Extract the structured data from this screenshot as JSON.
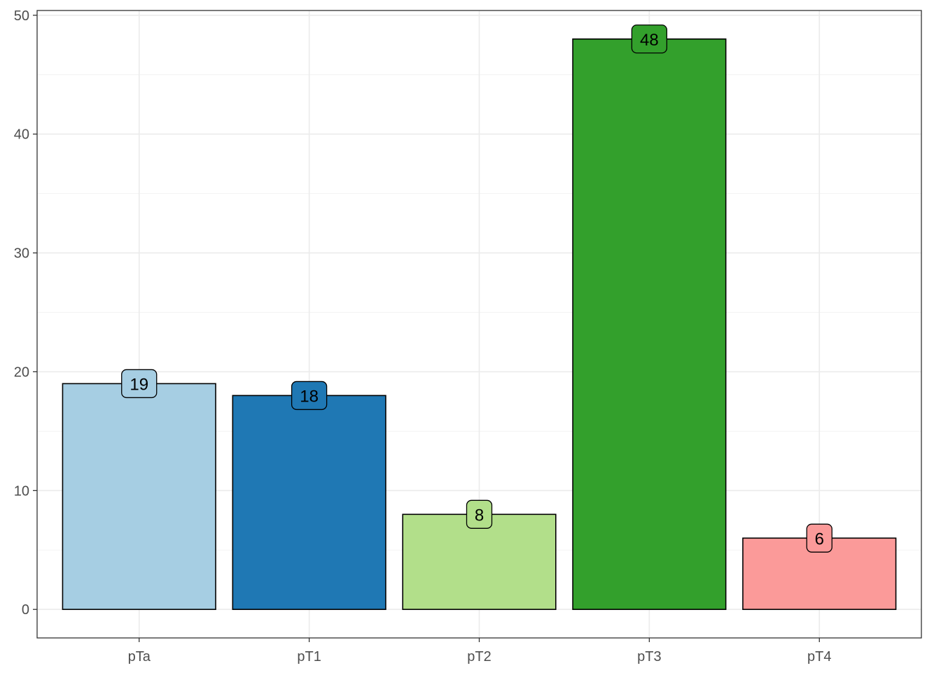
{
  "chart_data": {
    "type": "bar",
    "categories": [
      "pTa",
      "pT1",
      "pT2",
      "pT3",
      "pT4"
    ],
    "values": [
      19,
      18,
      8,
      48,
      6
    ],
    "data_labels": [
      "19",
      "18",
      "8",
      "48",
      "6"
    ],
    "colors": [
      "#a6cee3",
      "#1f78b4",
      "#b2df8a",
      "#33a02c",
      "#fb9a99"
    ],
    "title": "",
    "xlabel": "",
    "ylabel": "",
    "ylim": [
      -2.4,
      50.4
    ],
    "yticks": [
      0,
      10,
      20,
      30,
      40,
      50
    ],
    "ytick_labels": [
      "0",
      "10",
      "20",
      "30",
      "40",
      "50"
    ],
    "grid": true,
    "legend": "none"
  }
}
